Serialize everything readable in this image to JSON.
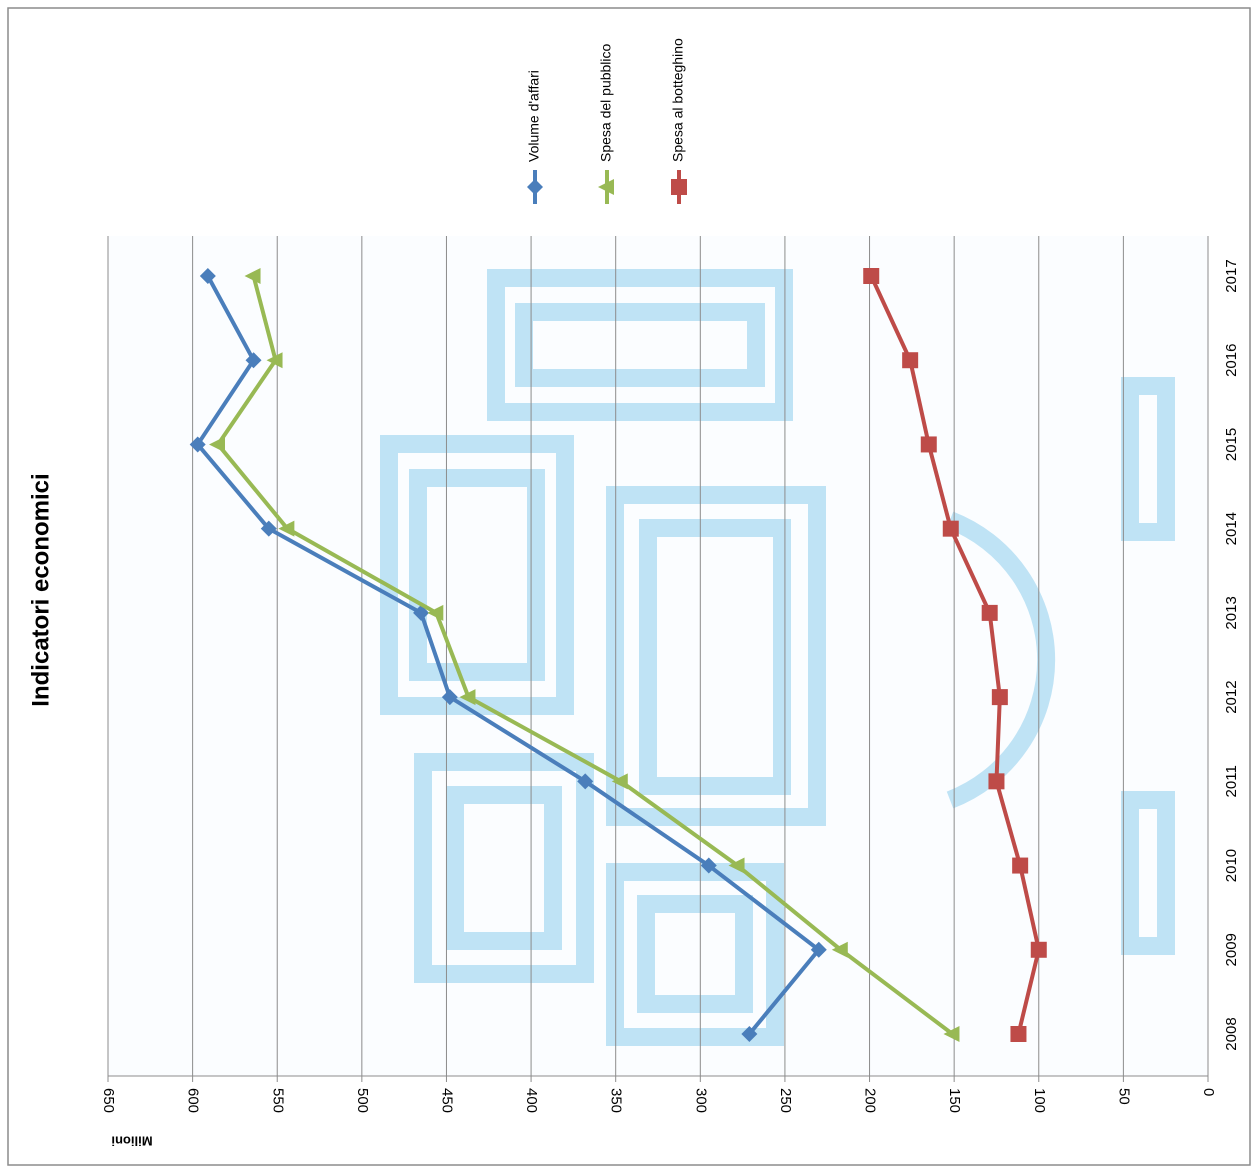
{
  "chart_data": {
    "type": "line",
    "title": "Indicatori economici",
    "y_label": "Milioni",
    "categories": [
      "2008",
      "2009",
      "2010",
      "2011",
      "2012",
      "2013",
      "2014",
      "2015",
      "2016",
      "2017"
    ],
    "series": [
      {
        "name": "Volume d'affari",
        "color": "#4a7ebb",
        "marker": "diamond",
        "values": [
          271,
          230,
          295,
          368,
          448,
          465,
          555,
          597,
          564,
          591
        ]
      },
      {
        "name": "Spesa del pubblico",
        "color": "#98b954",
        "marker": "triangle",
        "values": [
          151,
          217,
          278,
          347,
          437,
          456,
          544,
          585,
          551,
          564
        ]
      },
      {
        "name": "Spesa al botteghino",
        "color": "#be4b48",
        "marker": "square",
        "values": [
          112,
          100,
          111,
          125,
          123,
          129,
          152,
          165,
          176,
          199
        ]
      }
    ],
    "ylim": [
      0,
      650
    ],
    "yticks": [
      0,
      50,
      100,
      150,
      200,
      250,
      300,
      350,
      400,
      450,
      500,
      550,
      600,
      650
    ],
    "grid": true,
    "legend": "top"
  }
}
